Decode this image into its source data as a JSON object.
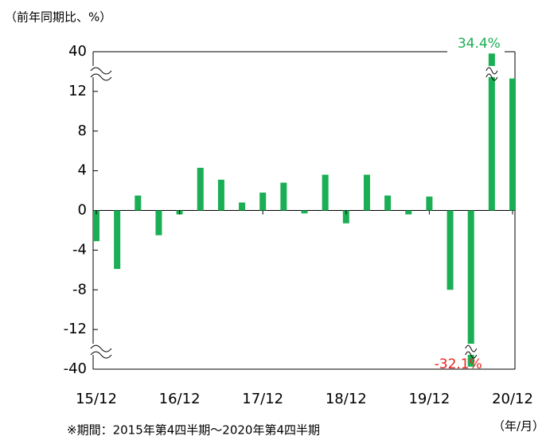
{
  "chart_data": {
    "type": "bar",
    "y_axis_label": "（前年同期比、%）",
    "x_axis_label": "（年/月）",
    "footnote": "※期間：2015年第4四半期～2020年第4四半期",
    "categories": [
      "15/12",
      null,
      null,
      null,
      "16/12",
      null,
      null,
      null,
      "17/12",
      null,
      null,
      null,
      "18/12",
      null,
      null,
      null,
      "19/12",
      null,
      null,
      null,
      "20/12"
    ],
    "values": [
      -3.1,
      -5.9,
      1.5,
      -2.5,
      -0.4,
      4.3,
      3.1,
      0.8,
      1.8,
      2.8,
      -0.3,
      3.6,
      -1.3,
      3.6,
      1.5,
      -0.4,
      1.4,
      -8.0,
      -32.1,
      34.4,
      13.3
    ],
    "value_labels": [
      null,
      null,
      null,
      null,
      null,
      null,
      null,
      null,
      null,
      null,
      null,
      null,
      null,
      null,
      null,
      null,
      null,
      null,
      "-32.1%",
      "34.4%",
      null
    ],
    "color": "#1aaf54",
    "label_colors": {
      "positive": "#1aaf54",
      "negative": "#e8231f"
    },
    "ylim": [
      -40,
      40
    ],
    "yticks": [
      40,
      12,
      8,
      4,
      0,
      -4,
      -8,
      -12,
      -40
    ],
    "broken_axis": true
  }
}
